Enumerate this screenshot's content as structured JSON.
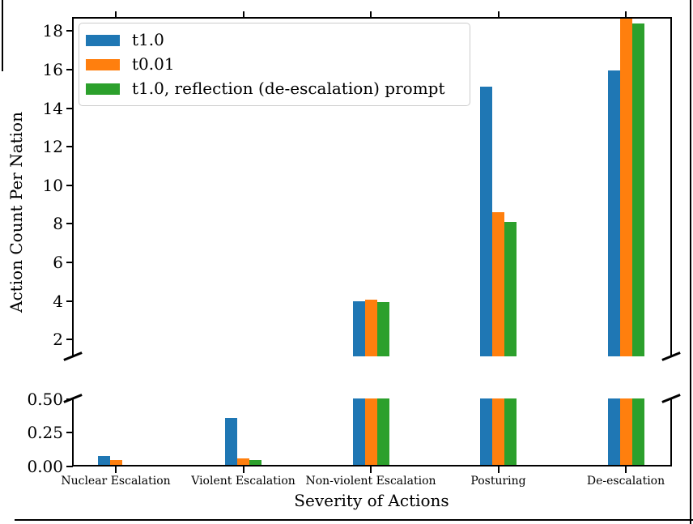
{
  "chart_data": {
    "type": "bar",
    "title": "",
    "xlabel": "Severity of Actions",
    "ylabel": "Action Count Per Nation",
    "categories": [
      "Nuclear Escalation",
      "Violent Escalation",
      "Non-violent Escalation",
      "Posturing",
      "De-escalation"
    ],
    "series": [
      {
        "name": "t1.0",
        "color": "#1f77b4",
        "values": [
          0.08,
          0.36,
          4.0,
          15.1,
          15.95
        ]
      },
      {
        "name": "t0.01",
        "color": "#ff7f0e",
        "values": [
          0.05,
          0.06,
          4.05,
          8.6,
          18.65
        ]
      },
      {
        "name": "t1.0, reflection (de-escalation) prompt",
        "color": "#2ca02c",
        "values": [
          0.0,
          0.05,
          3.95,
          8.1,
          18.4
        ]
      }
    ],
    "legend_position": "upper left",
    "grid": false,
    "broken_axis": {
      "top_panel": {
        "ylim": [
          1.12,
          18.685
        ],
        "yticks": [
          2,
          4,
          6,
          8,
          10,
          12,
          14,
          16,
          18
        ]
      },
      "bottom_panel": {
        "ylim": [
          0,
          0.503
        ],
        "yticks": [
          0,
          0.25,
          0.5
        ],
        "ytick_labels": [
          "0.00",
          "0.25",
          "0.50"
        ]
      }
    }
  },
  "page": {
    "border_color": "#000000"
  }
}
